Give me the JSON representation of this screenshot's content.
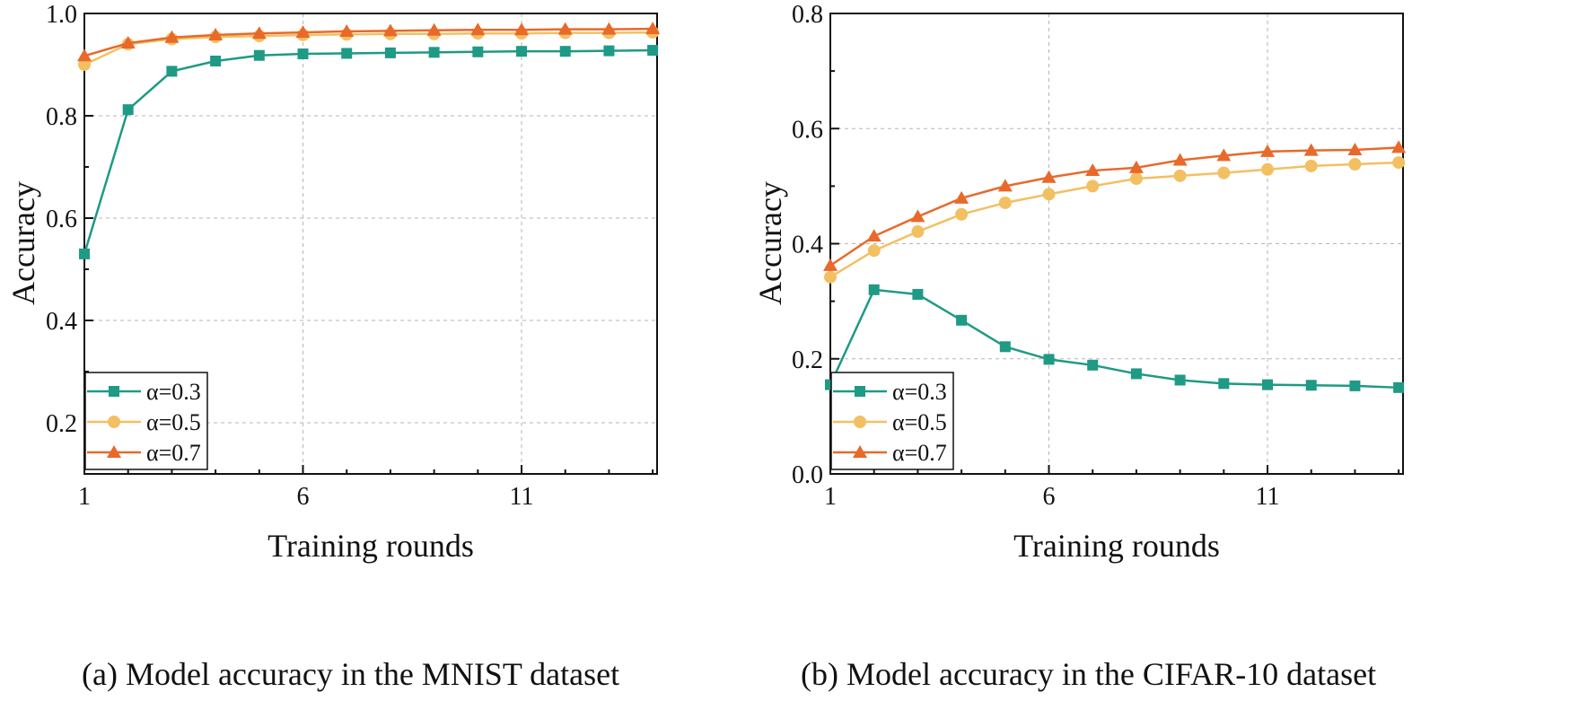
{
  "chart_data": [
    {
      "type": "line",
      "caption": "(a) Model accuracy in the MNIST dataset",
      "xlabel": "Training rounds",
      "ylabel": "Accuracy",
      "xlim": [
        1,
        14.1
      ],
      "ylim": [
        0.1,
        1.0
      ],
      "x_ticks": [
        1,
        6,
        11
      ],
      "x_tick_labels": [
        "1",
        "6",
        "11"
      ],
      "y_ticks": [
        0.2,
        0.4,
        0.6,
        0.8,
        1.0
      ],
      "y_tick_labels": [
        "0.2",
        "0.4",
        "0.6",
        "0.8",
        "1.0"
      ],
      "grid": true,
      "legend_position": "bottom-left",
      "x": [
        1,
        2,
        3,
        4,
        5,
        6,
        7,
        8,
        9,
        10,
        11,
        12,
        13,
        14
      ],
      "series": [
        {
          "name": "α=0.3",
          "color": "#1e9a85",
          "marker": "square",
          "values": [
            0.53,
            0.812,
            0.887,
            0.907,
            0.918,
            0.921,
            0.922,
            0.923,
            0.924,
            0.925,
            0.926,
            0.926,
            0.927,
            0.928
          ]
        },
        {
          "name": "α=0.5",
          "color": "#f2c062",
          "marker": "circle",
          "values": [
            0.9,
            0.94,
            0.95,
            0.954,
            0.956,
            0.958,
            0.959,
            0.96,
            0.96,
            0.961,
            0.961,
            0.962,
            0.962,
            0.963
          ]
        },
        {
          "name": "α=0.7",
          "color": "#e8692a",
          "marker": "triangle",
          "values": [
            0.917,
            0.942,
            0.953,
            0.958,
            0.961,
            0.963,
            0.965,
            0.966,
            0.967,
            0.968,
            0.968,
            0.969,
            0.969,
            0.97
          ]
        }
      ]
    },
    {
      "type": "line",
      "caption": "(b) Model accuracy in the CIFAR-10 dataset",
      "xlabel": "Training rounds",
      "ylabel": "Accuracy",
      "xlim": [
        1,
        14.1
      ],
      "ylim": [
        0.0,
        0.8
      ],
      "x_ticks": [
        1,
        6,
        11
      ],
      "x_tick_labels": [
        "1",
        "6",
        "11"
      ],
      "y_ticks": [
        0.0,
        0.2,
        0.4,
        0.6,
        0.8
      ],
      "y_tick_labels": [
        "0.0",
        "0.2",
        "0.4",
        "0.6",
        "0.8"
      ],
      "grid": true,
      "legend_position": "bottom-left",
      "x": [
        1,
        2,
        3,
        4,
        5,
        6,
        7,
        8,
        9,
        10,
        11,
        12,
        13,
        14
      ],
      "series": [
        {
          "name": "α=0.3",
          "color": "#1e9a85",
          "marker": "square",
          "values": [
            0.155,
            0.32,
            0.312,
            0.267,
            0.221,
            0.199,
            0.189,
            0.174,
            0.163,
            0.157,
            0.155,
            0.154,
            0.153,
            0.15
          ]
        },
        {
          "name": "α=0.5",
          "color": "#f2c062",
          "marker": "circle",
          "values": [
            0.342,
            0.388,
            0.421,
            0.451,
            0.471,
            0.486,
            0.5,
            0.513,
            0.518,
            0.523,
            0.529,
            0.535,
            0.538,
            0.541
          ]
        },
        {
          "name": "α=0.7",
          "color": "#e8692a",
          "marker": "triangle",
          "values": [
            0.362,
            0.413,
            0.447,
            0.479,
            0.5,
            0.515,
            0.527,
            0.532,
            0.545,
            0.553,
            0.56,
            0.562,
            0.563,
            0.567
          ]
        }
      ]
    }
  ]
}
